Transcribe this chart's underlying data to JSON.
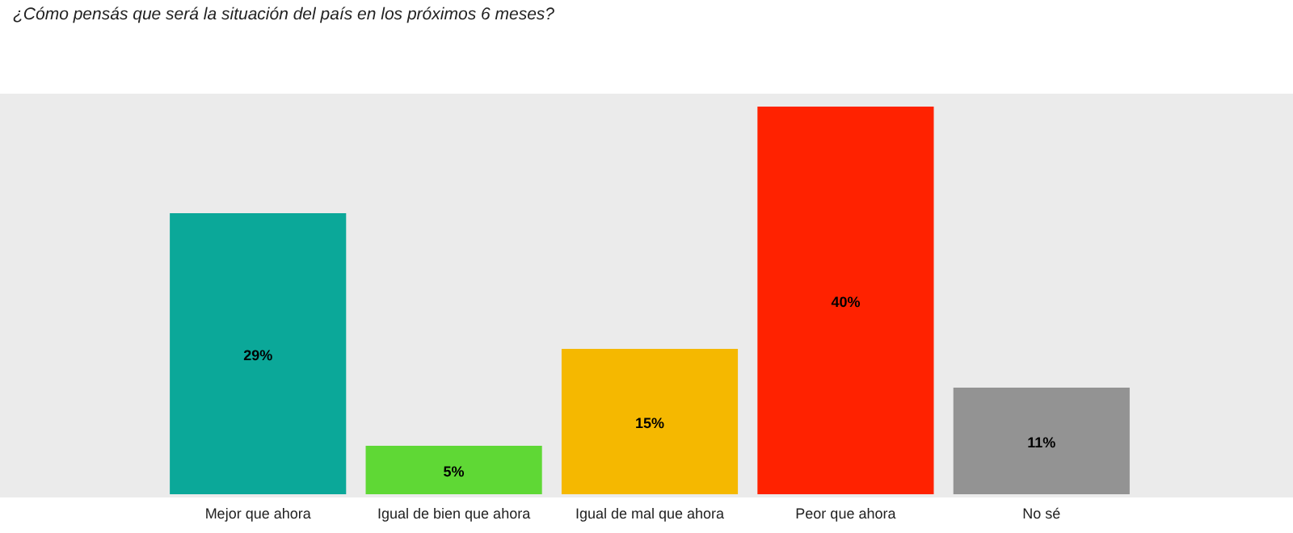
{
  "chart_data": {
    "type": "bar",
    "title": "¿Cómo pensás que será la situación del país en los próximos 6 meses?",
    "categories": [
      "Mejor que ahora",
      "Igual de bien que ahora",
      "Igual de mal que ahora",
      "Peor que ahora",
      "No sé"
    ],
    "values": [
      29,
      5,
      15,
      40,
      11
    ],
    "colors": [
      "#0ba899",
      "#5fd835",
      "#f5b800",
      "#ff2200",
      "#939393"
    ],
    "value_labels": [
      "29%",
      "5%",
      "15%",
      "40%",
      "11%"
    ]
  }
}
